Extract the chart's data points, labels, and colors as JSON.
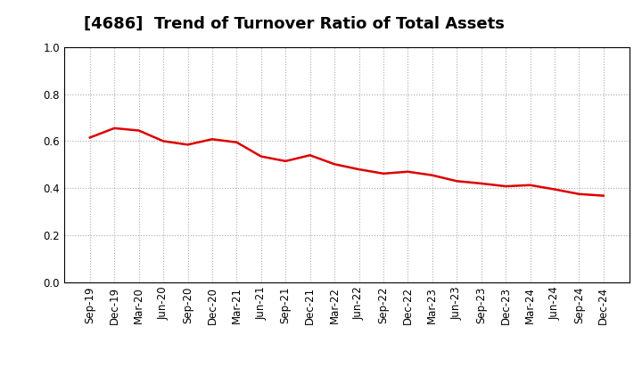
{
  "title": "[4686]  Trend of Turnover Ratio of Total Assets",
  "x_labels": [
    "Sep-19",
    "Dec-19",
    "Mar-20",
    "Jun-20",
    "Sep-20",
    "Dec-20",
    "Mar-21",
    "Jun-21",
    "Sep-21",
    "Dec-21",
    "Mar-22",
    "Jun-22",
    "Sep-22",
    "Dec-22",
    "Mar-23",
    "Jun-23",
    "Sep-23",
    "Dec-23",
    "Mar-24",
    "Jun-24",
    "Sep-24",
    "Dec-24"
  ],
  "values": [
    0.615,
    0.655,
    0.645,
    0.6,
    0.585,
    0.608,
    0.595,
    0.535,
    0.515,
    0.54,
    0.502,
    0.48,
    0.462,
    0.47,
    0.455,
    0.43,
    0.42,
    0.408,
    0.413,
    0.395,
    0.375,
    0.368
  ],
  "line_color": "#dd0000",
  "line_width": 1.8,
  "ylim": [
    0.0,
    1.0
  ],
  "yticks": [
    0.0,
    0.2,
    0.4,
    0.6,
    0.8,
    1.0
  ],
  "grid_color": "#aaaaaa",
  "background_color": "#ffffff",
  "title_fontsize": 13,
  "tick_fontsize": 8.5
}
